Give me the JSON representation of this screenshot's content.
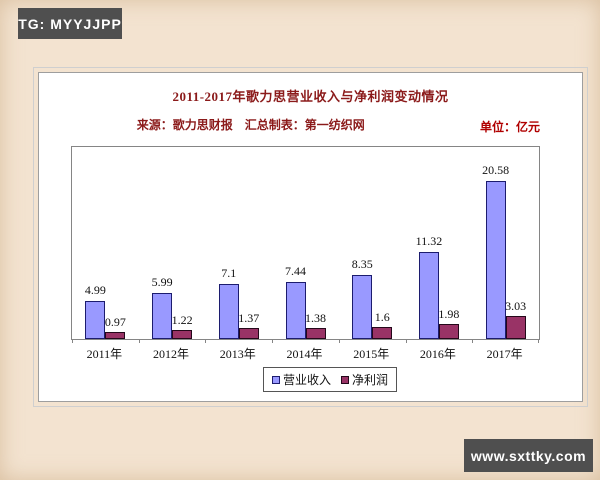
{
  "watermarks": {
    "top": "TG: MYYJJPP",
    "bottom": "www.sxttky.com"
  },
  "chart": {
    "title": "2011-2017年歌力思营业收入与净利润变动情况",
    "source_note": "来源：歌力思财报　汇总制表：第一纺织网",
    "unit_label": "单位：亿元"
  },
  "colors": {
    "page_background": "#f3e3d0",
    "card_background": "#ffffff",
    "title_text": "#8b1a1a",
    "unit_text": "#b00000",
    "watermark_badge_bg": "#4f4f4f",
    "watermark_badge_text": "#ffffff",
    "plot_border": "#858585",
    "revenue_fill": "#9999ff",
    "revenue_border": "#1c1c6e",
    "profit_fill": "#993366",
    "profit_border": "#24081a"
  },
  "chart_data": {
    "type": "bar",
    "title": "2011-2017年歌力思营业收入与净利润变动情况",
    "categories": [
      "2011年",
      "2012年",
      "2013年",
      "2014年",
      "2015年",
      "2016年",
      "2017年"
    ],
    "series": [
      {
        "name": "营业收入",
        "color": "#9999ff",
        "border": "#1c1c6e",
        "values": [
          4.99,
          5.99,
          7.1,
          7.44,
          8.35,
          11.32,
          20.58
        ]
      },
      {
        "name": "净利润",
        "color": "#993366",
        "border": "#24081a",
        "values": [
          0.97,
          1.22,
          1.37,
          1.38,
          1.6,
          1.98,
          3.03
        ]
      }
    ],
    "xlabel": "",
    "ylabel": "亿元",
    "ylim": [
      0,
      25
    ],
    "grid": false,
    "y_axis_labels_visible": false,
    "value_labels": true,
    "legend_position": "bottom"
  }
}
